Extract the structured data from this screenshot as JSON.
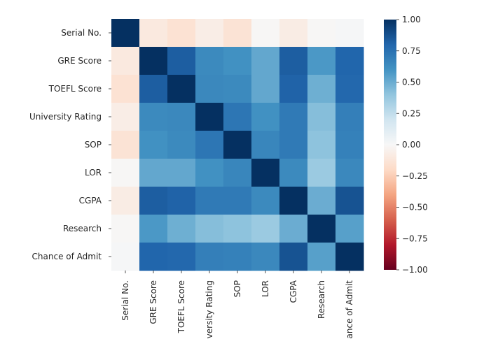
{
  "chart_data": {
    "type": "heatmap",
    "title": "",
    "xlabel": "",
    "ylabel": "",
    "colormap": "RdBu_r",
    "grid": false,
    "legend": "colorbar-right",
    "x_tick_labels": [
      "Serial No.",
      "GRE Score",
      "TOEFL Score",
      "versity Rating",
      "SOP",
      "LOR",
      "CGPA",
      "Research",
      "ance of Admit"
    ],
    "y_tick_labels": [
      "Serial No.",
      "GRE Score",
      "TOEFL Score",
      "University Rating",
      "SOP",
      "LOR",
      "CGPA",
      "Research",
      "Chance of Admit"
    ],
    "vmin": -1.0,
    "vmax": 1.0,
    "colorbar_ticks": [
      "1.00",
      "0.75",
      "0.50",
      "0.25",
      "0.00",
      "−0.25",
      "−0.50",
      "−0.75",
      "−1.00"
    ],
    "matrix": [
      [
        1.0,
        -0.1,
        -0.15,
        -0.07,
        -0.14,
        -0.01,
        -0.08,
        -0.01,
        0.01
      ],
      [
        -0.1,
        1.0,
        0.83,
        0.64,
        0.61,
        0.52,
        0.83,
        0.58,
        0.8
      ],
      [
        -0.15,
        0.83,
        1.0,
        0.65,
        0.64,
        0.52,
        0.81,
        0.49,
        0.79
      ],
      [
        -0.07,
        0.64,
        0.65,
        1.0,
        0.73,
        0.61,
        0.71,
        0.43,
        0.69
      ],
      [
        -0.14,
        0.61,
        0.64,
        0.73,
        1.0,
        0.66,
        0.71,
        0.41,
        0.68
      ],
      [
        -0.01,
        0.52,
        0.52,
        0.61,
        0.66,
        1.0,
        0.64,
        0.37,
        0.65
      ],
      [
        -0.08,
        0.83,
        0.81,
        0.71,
        0.71,
        0.64,
        1.0,
        0.5,
        0.87
      ],
      [
        -0.01,
        0.58,
        0.49,
        0.43,
        0.41,
        0.37,
        0.5,
        1.0,
        0.55
      ],
      [
        0.01,
        0.8,
        0.79,
        0.69,
        0.68,
        0.65,
        0.87,
        0.55,
        1.0
      ]
    ]
  }
}
